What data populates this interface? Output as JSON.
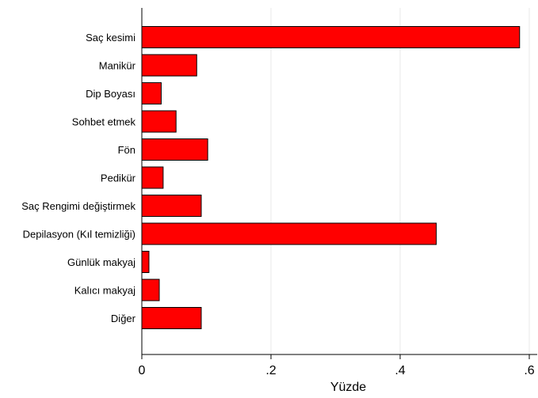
{
  "chart_data": {
    "type": "bar",
    "orientation": "horizontal",
    "categories": [
      "Saç kesimi",
      "Manikür",
      "Dip Boyası",
      "Sohbet etmek",
      "Fön",
      "Pedikür",
      "Saç Rengimi değiştirmek",
      "Depilasyon (Kıl temizliği)",
      "Günlük makyaj",
      "Kalıcı makyaj",
      "Diğer"
    ],
    "values": [
      0.585,
      0.085,
      0.03,
      0.053,
      0.102,
      0.033,
      0.092,
      0.456,
      0.011,
      0.027,
      0.092
    ],
    "xlabel": "Yüzde",
    "ylabel": "",
    "title": "",
    "xlim": [
      0,
      0.6
    ],
    "xticks": [
      {
        "value": 0,
        "label": "0"
      },
      {
        "value": 0.2,
        "label": ".2"
      },
      {
        "value": 0.4,
        "label": ".4"
      },
      {
        "value": 0.6,
        "label": ".6"
      }
    ],
    "grid": "vertical",
    "bar_color": "#ff0000",
    "bar_edge_color": "#000000",
    "grid_color": "#e8e8e8"
  }
}
